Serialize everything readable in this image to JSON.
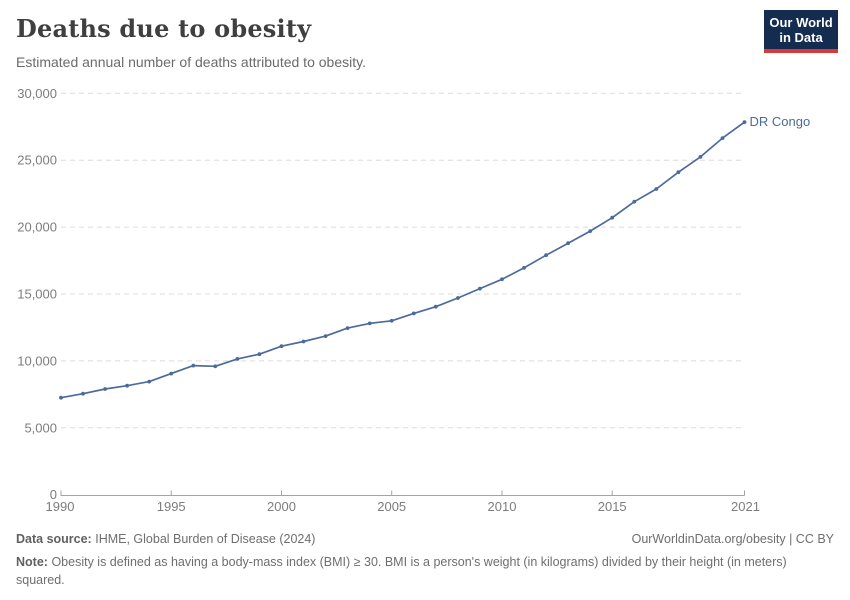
{
  "header": {
    "title": "Deaths due to obesity",
    "subtitle": "Estimated annual number of deaths attributed to obesity."
  },
  "logo": {
    "line1": "Our World",
    "line2": "in Data",
    "bg_color": "#132c4f",
    "accent_color": "#d73a3a"
  },
  "chart_data": {
    "type": "line",
    "title": "Deaths due to obesity",
    "subtitle": "Estimated annual number of deaths attributed to obesity.",
    "x": [
      1990,
      1991,
      1992,
      1993,
      1994,
      1995,
      1996,
      1997,
      1998,
      1999,
      2000,
      2001,
      2002,
      2003,
      2004,
      2005,
      2006,
      2007,
      2008,
      2009,
      2010,
      2011,
      2012,
      2013,
      2014,
      2015,
      2016,
      2017,
      2018,
      2019,
      2020,
      2021
    ],
    "series": [
      {
        "name": "DR Congo",
        "color": "#4c6a9c",
        "values": [
          7250,
          7550,
          7900,
          8150,
          8450,
          9050,
          9650,
          9600,
          10150,
          10500,
          11100,
          11450,
          11850,
          12450,
          12800,
          13000,
          13550,
          14050,
          14700,
          15400,
          16100,
          16950,
          17900,
          18800,
          19700,
          20700,
          21900,
          22850,
          24100,
          25250,
          26650,
          27850
        ]
      }
    ],
    "end_label": "DR Congo",
    "xlim": [
      1990,
      2021
    ],
    "ylim": [
      0,
      30000
    ],
    "xticks": [
      1990,
      1995,
      2000,
      2005,
      2010,
      2015,
      2021
    ],
    "yticks": [
      0,
      5000,
      10000,
      15000,
      20000,
      25000,
      30000
    ],
    "xlabel": "",
    "ylabel": "",
    "grid": "horizontal-dashed",
    "legend_position": "end-of-line"
  },
  "footer": {
    "source_label": "Data source:",
    "source_text": "IHME, Global Burden of Disease (2024)",
    "credit": "OurWorldinData.org/obesity | CC BY",
    "note_label": "Note:",
    "note_text": "Obesity is defined as having a body-mass index (BMI) ≥ 30. BMI is a person's weight (in kilograms) divided by their height (in meters) squared."
  }
}
